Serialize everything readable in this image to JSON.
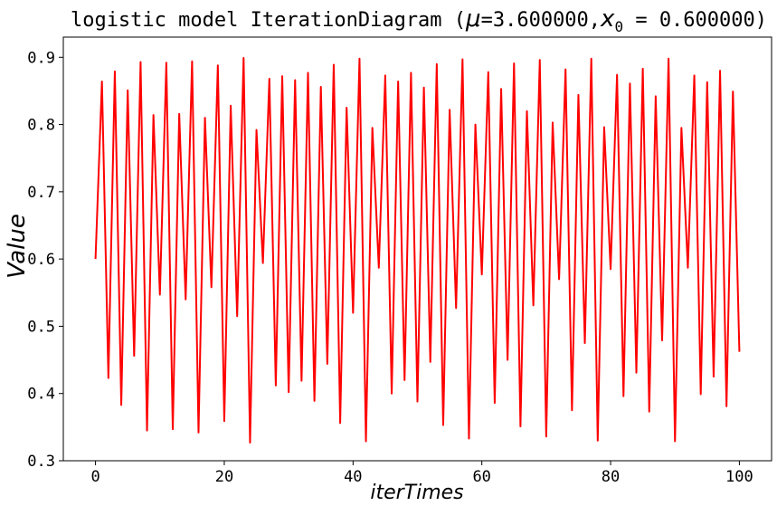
{
  "chart_data": {
    "type": "line",
    "title": {
      "prefix": "logistic model IterationDiagram (",
      "mu_symbol": "μ",
      "mu_part": "=3.600000,",
      "x_symbol": "x",
      "x_sub": "0",
      "x_part": " = 0.600000)"
    },
    "xlabel": "iterTimes",
    "ylabel": "Value",
    "xlim": [
      -5,
      105
    ],
    "ylim": [
      0.3,
      0.93
    ],
    "xticks": [
      0,
      20,
      40,
      60,
      80,
      100
    ],
    "yticks": [
      0.3,
      0.4,
      0.5,
      0.6,
      0.7,
      0.8,
      0.9
    ],
    "grid": false,
    "line_color": "#ff0000",
    "mu": 3.6,
    "x0": 0.6,
    "series": [
      {
        "x": [
          0,
          1,
          2,
          3,
          4,
          5,
          6,
          7,
          8,
          9,
          10,
          11,
          12,
          13,
          14,
          15,
          16,
          17,
          18,
          19,
          20,
          21,
          22,
          23,
          24,
          25,
          26,
          27,
          28,
          29,
          30,
          31,
          32,
          33,
          34,
          35,
          36,
          37,
          38,
          39,
          40,
          41,
          42,
          43,
          44,
          45,
          46,
          47,
          48,
          49,
          50,
          51,
          52,
          53,
          54,
          55,
          56,
          57,
          58,
          59,
          60,
          61,
          62,
          63,
          64,
          65,
          66,
          67,
          68,
          69,
          70,
          71,
          72,
          73,
          74,
          75,
          76,
          77,
          78,
          79,
          80,
          81,
          82,
          83,
          84,
          85,
          86,
          87,
          88,
          89,
          90,
          91,
          92,
          93,
          94,
          95,
          96,
          97,
          98,
          99,
          100
        ],
        "values": [
          0.6,
          0.864,
          0.423,
          0.879,
          0.383,
          0.851,
          0.456,
          0.893,
          0.345,
          0.814,
          0.547,
          0.892,
          0.347,
          0.816,
          0.54,
          0.894,
          0.342,
          0.81,
          0.558,
          0.888,
          0.359,
          0.828,
          0.515,
          0.899,
          0.327,
          0.792,
          0.594,
          0.868,
          0.412,
          0.872,
          0.402,
          0.866,
          0.419,
          0.877,
          0.389,
          0.856,
          0.444,
          0.889,
          0.356,
          0.825,
          0.52,
          0.898,
          0.329,
          0.795,
          0.587,
          0.873,
          0.4,
          0.864,
          0.42,
          0.877,
          0.388,
          0.855,
          0.447,
          0.89,
          0.353,
          0.822,
          0.527,
          0.897,
          0.333,
          0.8,
          0.577,
          0.878,
          0.386,
          0.853,
          0.45,
          0.891,
          0.351,
          0.82,
          0.531,
          0.896,
          0.336,
          0.803,
          0.57,
          0.882,
          0.375,
          0.844,
          0.475,
          0.898,
          0.33,
          0.796,
          0.585,
          0.874,
          0.396,
          0.861,
          0.431,
          0.883,
          0.373,
          0.842,
          0.479,
          0.898,
          0.329,
          0.795,
          0.587,
          0.873,
          0.399,
          0.863,
          0.425,
          0.88,
          0.381,
          0.849,
          0.462
        ]
      }
    ]
  }
}
